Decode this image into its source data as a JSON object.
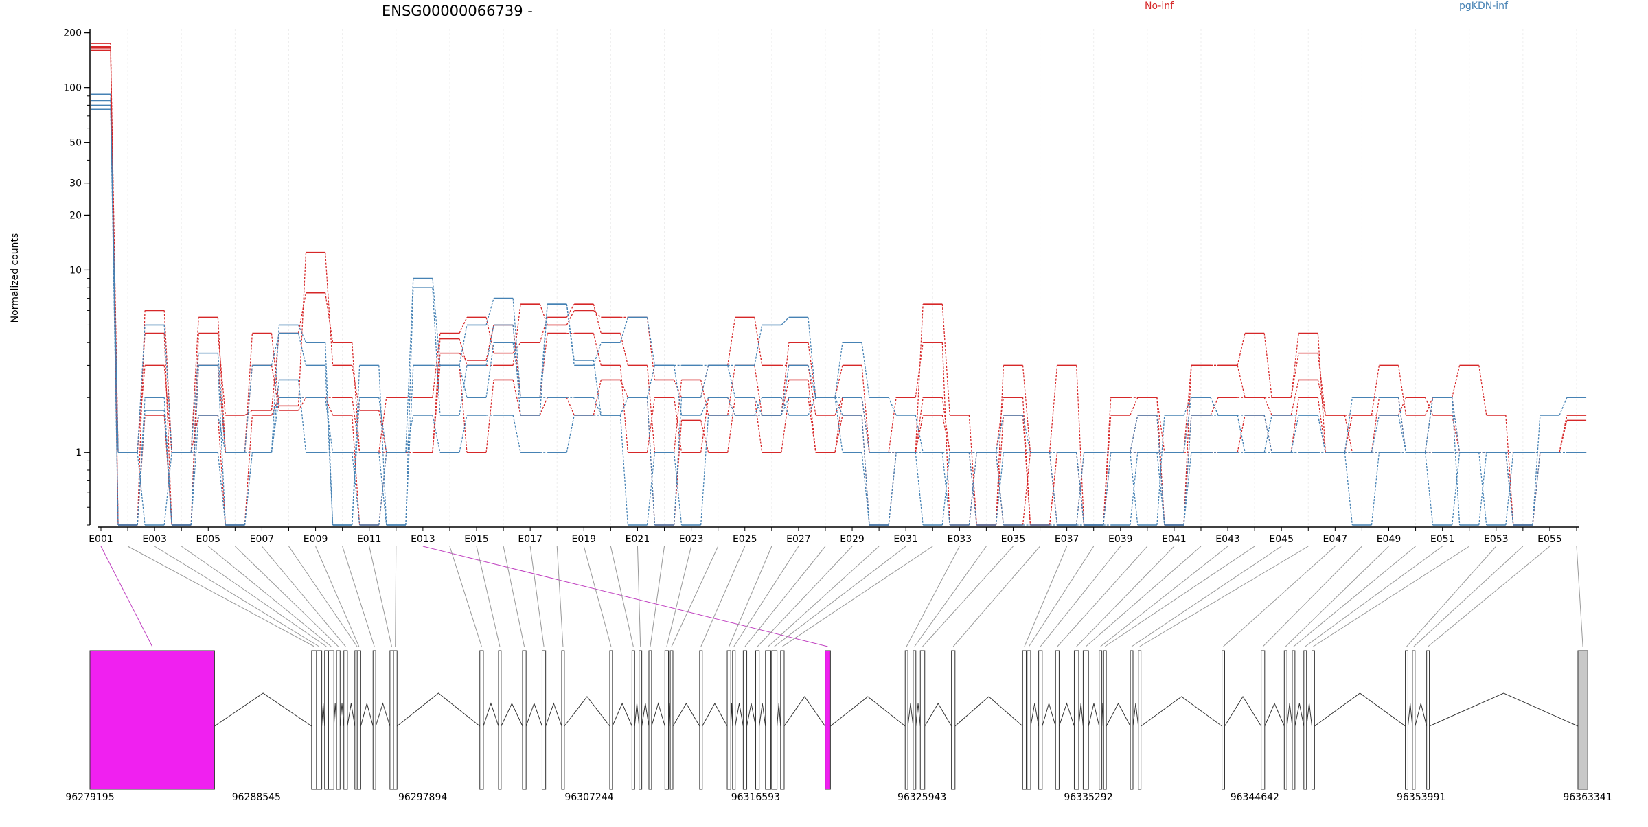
{
  "chart_data": {
    "type": "line",
    "title": "ENSG00000066739 -",
    "ylabel": "Normalized counts",
    "xlabel": "",
    "yscale": "log",
    "ylim": [
      0.4,
      210
    ],
    "yticks": [
      1,
      10,
      20,
      30,
      50,
      100,
      200
    ],
    "ytick_labels": [
      "1",
      "10",
      "20",
      "30",
      "50",
      "100",
      "200"
    ],
    "legend": [
      {
        "label": "No-inf",
        "color": "#d62728"
      },
      {
        "label": "pgKDN-inf",
        "color": "#4682b4"
      }
    ],
    "x_tick_labels": [
      "E001",
      "E003",
      "E005",
      "E007",
      "E009",
      "E011",
      "E013",
      "E015",
      "E017",
      "E019",
      "E021",
      "E023",
      "E025",
      "E027",
      "E029",
      "E031",
      "E033",
      "E035",
      "E037",
      "E039",
      "E041",
      "E043",
      "E045",
      "E047",
      "E049",
      "E051",
      "E053",
      "E055"
    ],
    "exons": [
      "E001",
      "E002",
      "E003",
      "E004",
      "E005",
      "E006",
      "E007",
      "E008",
      "E009",
      "E010",
      "E011",
      "E012",
      "E013",
      "E014",
      "E015",
      "E016",
      "E017",
      "E018",
      "E019",
      "E020",
      "E021",
      "E022",
      "E023",
      "E024",
      "E025",
      "E026",
      "E027",
      "E028",
      "E029",
      "E030",
      "E031",
      "E032",
      "E033",
      "E034",
      "E035",
      "E036",
      "E037",
      "E038",
      "E039",
      "E040",
      "E041",
      "E042",
      "E043",
      "E044",
      "E045",
      "E046",
      "E047",
      "E048",
      "E049",
      "E050",
      "E051",
      "E052",
      "E053",
      "E054",
      "E055",
      "E056"
    ],
    "series": [
      {
        "group": "No-inf",
        "color": "#d62728",
        "values": [
          175,
          0.4,
          6,
          1,
          5.5,
          1,
          4.5,
          1.8,
          12.5,
          3,
          1.7,
          1,
          1,
          4.2,
          3,
          3,
          6.5,
          5,
          6,
          5.5,
          5.5,
          2.5,
          2,
          3,
          5.5,
          3,
          3,
          1.6,
          2,
          1,
          1,
          6.5,
          1.6,
          0.4,
          3,
          1,
          3,
          0.4,
          1.6,
          2,
          0.4,
          3,
          3,
          4.5,
          2,
          4.5,
          1,
          1.6,
          3,
          1.6,
          2,
          3,
          1.6,
          0.4,
          1,
          1.6
        ]
      },
      {
        "group": "No-inf",
        "color": "#d62728",
        "values": [
          168,
          1,
          4.5,
          0.4,
          4.5,
          1.6,
          1.7,
          4.5,
          7.5,
          4,
          1,
          2,
          2,
          4.5,
          5.5,
          3.5,
          4,
          5.5,
          6.5,
          4.5,
          3,
          1,
          2.5,
          1.6,
          3,
          1.6,
          4,
          2,
          3,
          1,
          2,
          4,
          0.4,
          1,
          2,
          0.4,
          1,
          0.4,
          2,
          2,
          1,
          3,
          3,
          2,
          2,
          3.5,
          1.6,
          1.6,
          1.6,
          2,
          1.6,
          1,
          1,
          1,
          1,
          1.6
        ]
      },
      {
        "group": "No-inf",
        "color": "#d62728",
        "values": [
          165,
          0.4,
          1.6,
          0.4,
          3,
          1,
          3,
          1.7,
          2,
          2,
          1,
          1,
          1,
          3.5,
          3.2,
          5,
          2,
          4.5,
          4.5,
          3,
          1,
          2,
          1,
          2,
          1.6,
          1.6,
          2.5,
          1,
          2,
          1,
          1,
          2,
          1,
          0.4,
          1.6,
          0.4,
          1,
          0.4,
          1,
          1.6,
          0.4,
          1.6,
          2,
          2,
          1.6,
          2.5,
          1.6,
          1,
          2,
          1,
          2,
          1,
          1,
          1,
          1,
          1.5
        ]
      },
      {
        "group": "No-inf",
        "color": "#d62728",
        "values": [
          160,
          1,
          3,
          1,
          1.6,
          0.4,
          1.6,
          2,
          2,
          1.6,
          0.4,
          1,
          1,
          3,
          1,
          2.5,
          1.6,
          2,
          1.6,
          2.5,
          2,
          0.4,
          1.5,
          1,
          2,
          1,
          2,
          1,
          1.6,
          0.4,
          1,
          1.6,
          1,
          1,
          0.4,
          1,
          0.4,
          1,
          1,
          1,
          1,
          1,
          1,
          1.6,
          1,
          2,
          1,
          1,
          1,
          1,
          1,
          1,
          1,
          0.4,
          1,
          1
        ]
      },
      {
        "group": "pgKDN-inf",
        "color": "#4682b4",
        "values": [
          92,
          0.4,
          2,
          0.4,
          3,
          0.4,
          1,
          5,
          4,
          0.4,
          2,
          1,
          9,
          3,
          5,
          7,
          2,
          6.5,
          3,
          4,
          5.5,
          3,
          3,
          3,
          3,
          5,
          5.5,
          2,
          4,
          2,
          1.6,
          1,
          0.4,
          1,
          1.6,
          1,
          0.4,
          1,
          1,
          0.4,
          1.6,
          2,
          1.6,
          1,
          1.6,
          1.6,
          1,
          2,
          2,
          1,
          2,
          0.4,
          1,
          0.4,
          1.6,
          2
        ]
      },
      {
        "group": "pgKDN-inf",
        "color": "#4682b4",
        "values": [
          85,
          1,
          5,
          1,
          3.5,
          1,
          3,
          4.5,
          3,
          0.4,
          3,
          0.4,
          8,
          1.6,
          3,
          5,
          1.6,
          6.5,
          3.2,
          1.6,
          2,
          0.4,
          2,
          3,
          2,
          1.6,
          3,
          2,
          2,
          1,
          1,
          1,
          1,
          0.4,
          1,
          1,
          1,
          0.4,
          1,
          1.6,
          0.4,
          1.6,
          1.6,
          1,
          1,
          1.6,
          1,
          1,
          1.6,
          1,
          1,
          1,
          0.4,
          1,
          1,
          1
        ]
      },
      {
        "group": "pgKDN-inf",
        "color": "#4682b4",
        "values": [
          80,
          0.4,
          1.7,
          0.4,
          1.6,
          1,
          1,
          2,
          2,
          1,
          1,
          0.4,
          3,
          3,
          2,
          4,
          2,
          2,
          2,
          1.6,
          2,
          3,
          1.6,
          2,
          1.6,
          1.6,
          2,
          2,
          1.6,
          0.4,
          1,
          1,
          1,
          1,
          0.4,
          0.4,
          0.4,
          0.4,
          1,
          1,
          1,
          2,
          1.6,
          1.6,
          1,
          1,
          1,
          1,
          1,
          1,
          2,
          1,
          1,
          0.4,
          1,
          1
        ]
      },
      {
        "group": "pgKDN-inf",
        "color": "#4682b4",
        "values": [
          76,
          1,
          0.4,
          1,
          1,
          0.4,
          1,
          2.5,
          1,
          1,
          0.4,
          1,
          1.6,
          1,
          1.6,
          1.6,
          1,
          1,
          1.6,
          1.6,
          0.4,
          1,
          0.4,
          1.6,
          1.6,
          2,
          1.6,
          2,
          1,
          0.4,
          1,
          0.4,
          1,
          1,
          1,
          1,
          1,
          0.4,
          0.4,
          1,
          0.4,
          1,
          1,
          1,
          1,
          1,
          1,
          0.4,
          1,
          1,
          0.4,
          1,
          1,
          1,
          1,
          1
        ]
      }
    ],
    "genomic_axis": {
      "tick_labels": [
        "96279195",
        "96288545",
        "96297894",
        "96307244",
        "96316593",
        "96325943",
        "96335292",
        "96344642",
        "96353991",
        "96363341"
      ],
      "highlight_exons": [
        "E001",
        "E013"
      ],
      "highlight_color": "#f020f0",
      "exon_fill": "#ffffff",
      "last_exon_fill": "#c8c8c8"
    }
  }
}
